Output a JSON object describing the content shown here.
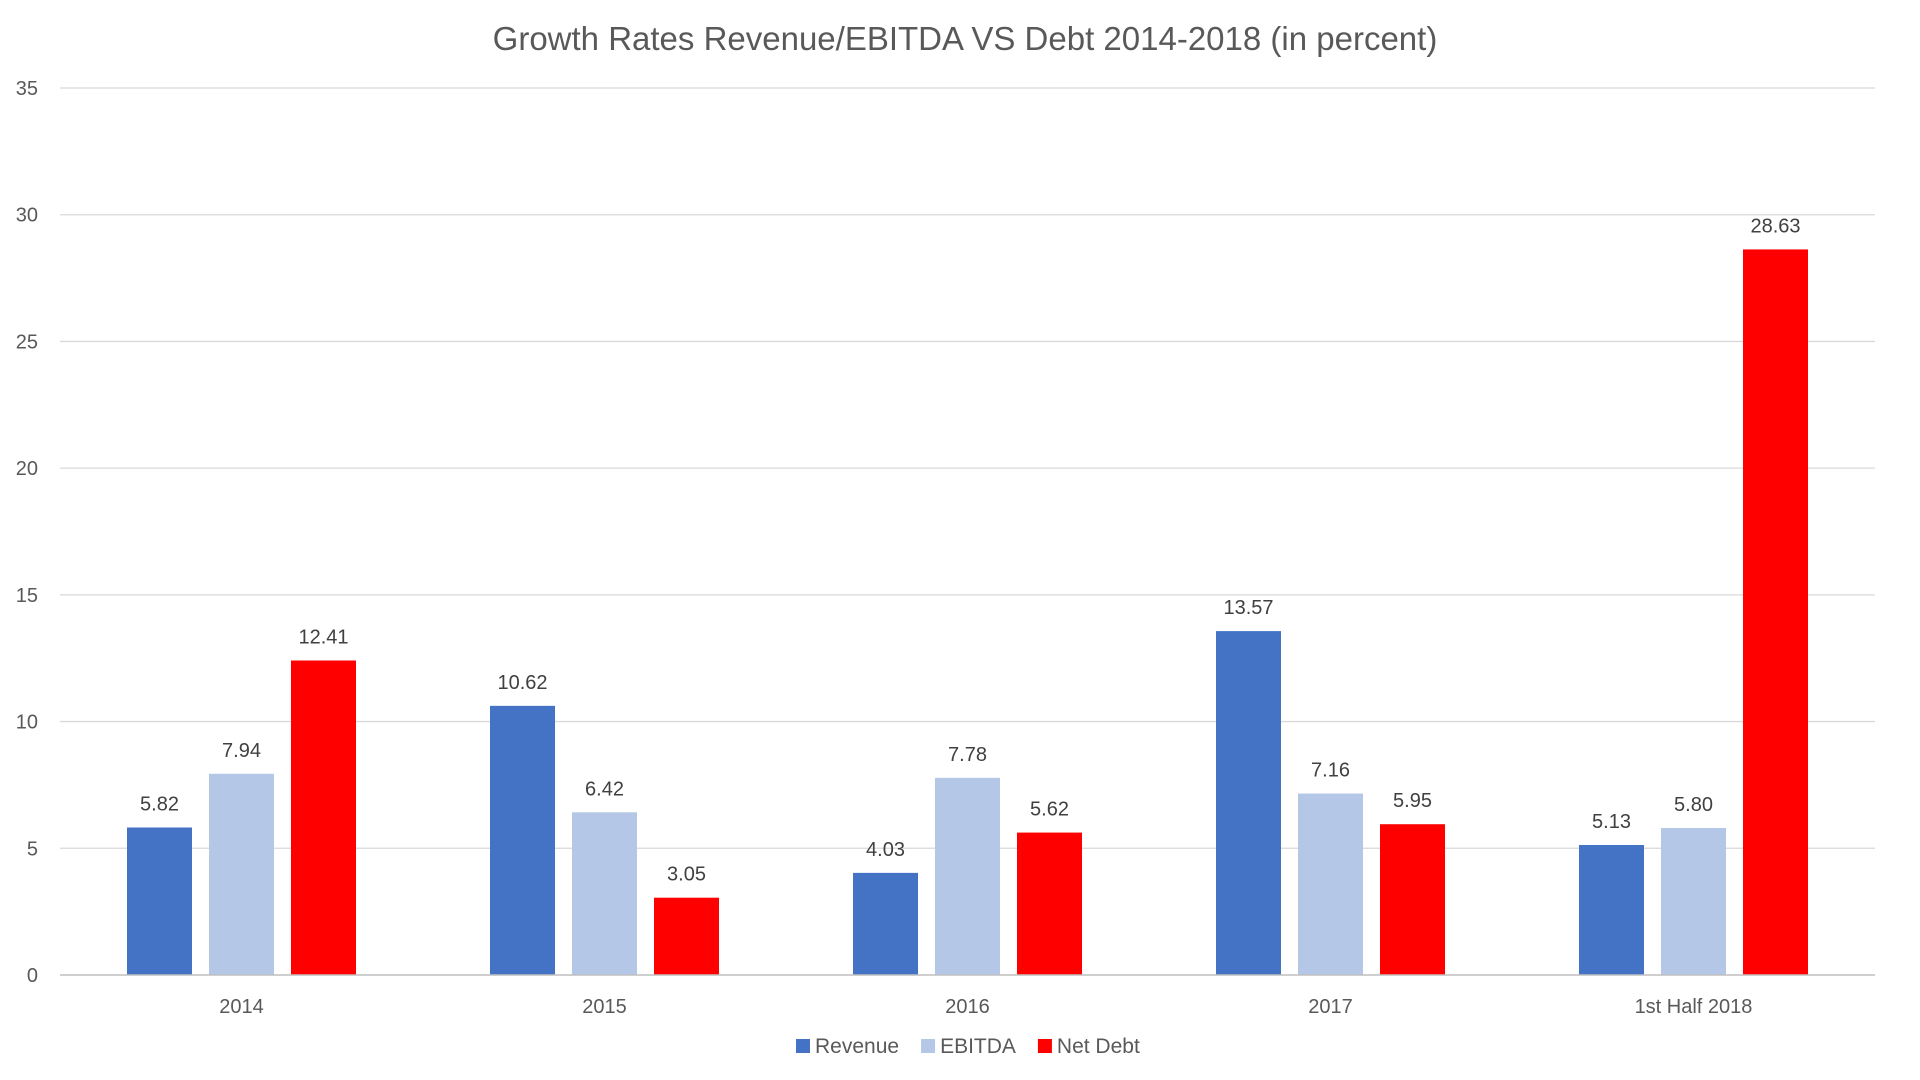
{
  "chart_data": {
    "type": "bar",
    "title": "Growth Rates Revenue/EBITDA VS Debt 2014-2018 (in percent)",
    "xlabel": "",
    "ylabel": "",
    "ylim": [
      0,
      35
    ],
    "y_ticks": [
      0,
      5,
      10,
      15,
      20,
      25,
      30,
      35
    ],
    "grid": true,
    "legend_position": "bottom",
    "categories": [
      "2014",
      "2015",
      "2016",
      "2017",
      "1st Half 2018"
    ],
    "series": [
      {
        "name": "Revenue",
        "color": "#4472C4",
        "values": [
          5.82,
          10.62,
          4.03,
          13.57,
          5.13
        ],
        "labels": [
          "5.82",
          "10.62",
          "4.03",
          "13.57",
          "5.13"
        ]
      },
      {
        "name": "EBITDA",
        "color": "#B4C7E7",
        "values": [
          7.94,
          6.42,
          7.78,
          7.16,
          5.8
        ],
        "labels": [
          "7.94",
          "6.42",
          "7.78",
          "7.16",
          "5.80"
        ]
      },
      {
        "name": "Net Debt",
        "color": "#FF0000",
        "values": [
          12.41,
          3.05,
          5.62,
          5.95,
          28.63
        ],
        "labels": [
          "12.41",
          "3.05",
          "5.62",
          "5.95",
          "28.63"
        ]
      }
    ]
  }
}
